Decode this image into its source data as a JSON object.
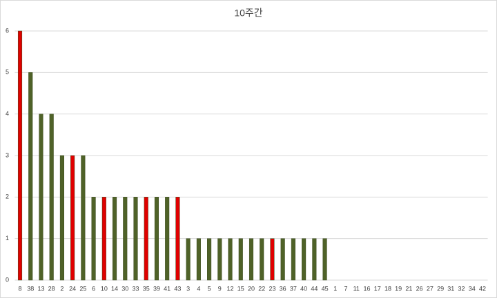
{
  "chart_data": {
    "type": "bar",
    "title": "10주간",
    "categories": [
      "8",
      "38",
      "13",
      "28",
      "2",
      "24",
      "25",
      "6",
      "10",
      "14",
      "30",
      "33",
      "35",
      "39",
      "41",
      "43",
      "3",
      "4",
      "5",
      "9",
      "12",
      "15",
      "20",
      "22",
      "23",
      "36",
      "37",
      "40",
      "44",
      "45",
      "1",
      "7",
      "11",
      "16",
      "17",
      "18",
      "19",
      "21",
      "26",
      "27",
      "29",
      "31",
      "32",
      "34",
      "42"
    ],
    "values": [
      6,
      5,
      4,
      4,
      3,
      3,
      3,
      2,
      2,
      2,
      2,
      2,
      2,
      2,
      2,
      2,
      1,
      1,
      1,
      1,
      1,
      1,
      1,
      1,
      1,
      1,
      1,
      1,
      1,
      1,
      0,
      0,
      0,
      0,
      0,
      0,
      0,
      0,
      0,
      0,
      0,
      0,
      0,
      0,
      0
    ],
    "colors": [
      "#e00000",
      "#4f6228",
      "#4f6228",
      "#4f6228",
      "#4f6228",
      "#e00000",
      "#4f6228",
      "#4f6228",
      "#e00000",
      "#4f6228",
      "#4f6228",
      "#4f6228",
      "#e00000",
      "#4f6228",
      "#4f6228",
      "#e00000",
      "#4f6228",
      "#4f6228",
      "#4f6228",
      "#4f6228",
      "#4f6228",
      "#4f6228",
      "#4f6228",
      "#4f6228",
      "#e00000",
      "#4f6228",
      "#4f6228",
      "#4f6228",
      "#4f6228",
      "#4f6228",
      "#4f6228",
      "#4f6228",
      "#4f6228",
      "#4f6228",
      "#4f6228",
      "#4f6228",
      "#4f6228",
      "#4f6228",
      "#4f6228",
      "#4f6228",
      "#4f6228",
      "#4f6228",
      "#4f6228",
      "#4f6228",
      "#4f6228"
    ],
    "ylim": [
      0,
      6
    ],
    "yticks": [
      0,
      1,
      2,
      3,
      4,
      5,
      6
    ],
    "grid": true
  }
}
